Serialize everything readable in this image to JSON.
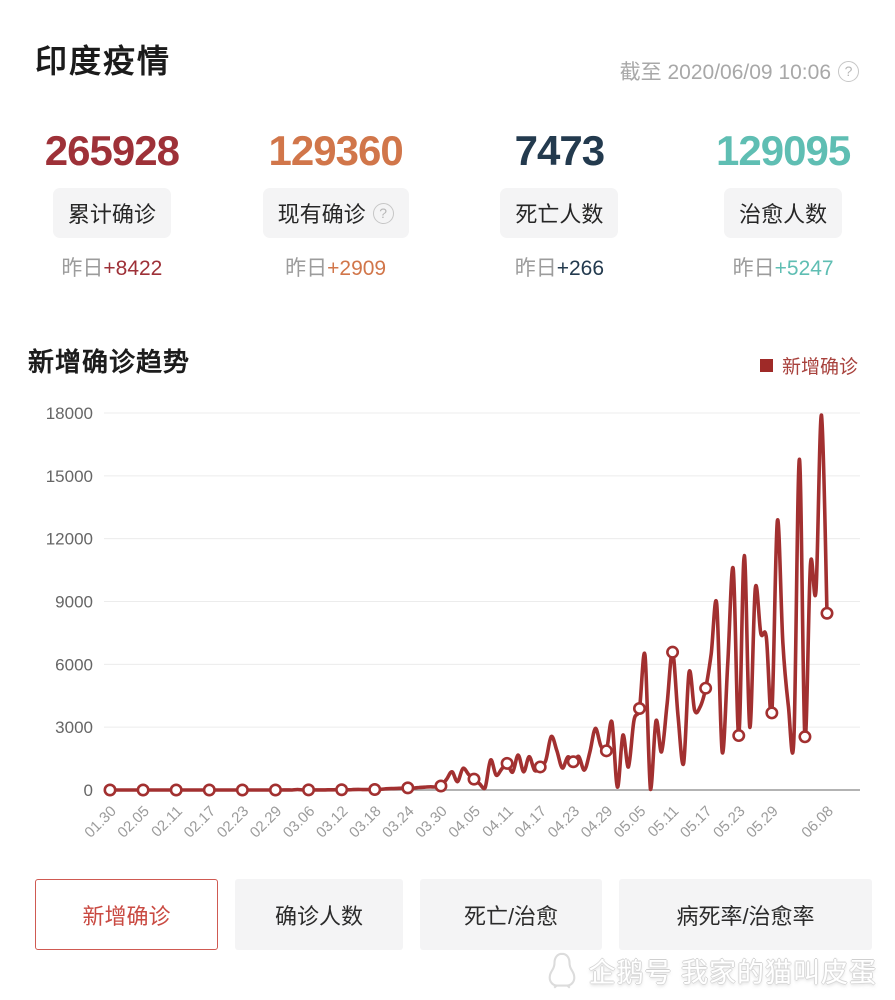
{
  "header": {
    "title": "印度疫情",
    "as_of": "截至 2020/06/09 10:06",
    "help_glyph": "?"
  },
  "stats": [
    {
      "value": "265928",
      "label": "累计确诊",
      "delta_prefix": "昨日",
      "delta": "+8422",
      "color": "#9e3138",
      "has_help": false
    },
    {
      "value": "129360",
      "label": "现有确诊",
      "delta_prefix": "昨日",
      "delta": "+2909",
      "color": "#d1764a",
      "has_help": true,
      "help_glyph": "?"
    },
    {
      "value": "7473",
      "label": "死亡人数",
      "delta_prefix": "昨日",
      "delta": "+266",
      "color": "#233a4e",
      "has_help": false
    },
    {
      "value": "129095",
      "label": "治愈人数",
      "delta_prefix": "昨日",
      "delta": "+5247",
      "color": "#5fbeb3",
      "has_help": false
    }
  ],
  "chart_data": {
    "type": "line",
    "title": "新增确诊趋势",
    "series_name": "新增确诊",
    "line_color": "#a23030",
    "legend_swatch_color": "#9f2a28",
    "legend_text_color": "#a8413c",
    "grid": true,
    "ylim": [
      0,
      18000
    ],
    "y_ticks": [
      0,
      3000,
      6000,
      9000,
      12000,
      15000,
      18000
    ],
    "x_tick_labels": [
      "01.30",
      "02.05",
      "02.11",
      "02.17",
      "02.23",
      "02.29",
      "03.06",
      "03.12",
      "03.18",
      "03.24",
      "03.30",
      "04.05",
      "04.11",
      "04.17",
      "04.23",
      "04.29",
      "05.05",
      "05.11",
      "05.17",
      "05.23",
      "05.29",
      "06.08"
    ],
    "x_tick_indices": [
      0,
      6,
      12,
      18,
      24,
      30,
      36,
      42,
      48,
      54,
      60,
      66,
      72,
      78,
      84,
      90,
      96,
      102,
      108,
      114,
      120,
      130
    ],
    "x_start_date": "01.30",
    "x_end_date": "06.08",
    "daily_values": [
      1,
      0,
      0,
      1,
      1,
      0,
      0,
      0,
      0,
      0,
      0,
      0,
      0,
      0,
      0,
      0,
      0,
      0,
      0,
      0,
      0,
      0,
      0,
      0,
      0,
      0,
      0,
      0,
      0,
      0,
      0,
      0,
      3,
      2,
      22,
      2,
      5,
      4,
      6,
      6,
      10,
      12,
      12,
      10,
      20,
      30,
      18,
      25,
      25,
      35,
      55,
      65,
      75,
      85,
      100,
      90,
      120,
      135,
      155,
      145,
      190,
      500,
      870,
      400,
      1030,
      750,
      520,
      300,
      95,
      1430,
      710,
      1000,
      1270,
      850,
      1670,
      870,
      1590,
      930,
      1100,
      1400,
      2550,
      1900,
      1050,
      1580,
      1350,
      1600,
      950,
      1800,
      2940,
      2100,
      1870,
      3250,
      140,
      2620,
      1100,
      3330,
      3890,
      6430,
      30,
      3300,
      1820,
      4100,
      6580,
      3500,
      1270,
      5630,
      3810,
      3970,
      4860,
      6500,
      8890,
      1820,
      6000,
      10560,
      2600,
      11190,
      3000,
      9620,
      7480,
      7300,
      3680,
      12860,
      7000,
      4000,
      2460,
      15790,
      2540,
      10790,
      9520,
      17900,
      8440
    ],
    "marker_values_at_ticks": {
      "01.30": 1,
      "02.05": 0,
      "02.11": 0,
      "02.17": 0,
      "02.23": 0,
      "02.29": 0,
      "03.06": 5,
      "03.12": 12,
      "03.18": 25,
      "03.24": 100,
      "03.30": 190,
      "04.05": 520,
      "04.11": 1270,
      "04.17": 1100,
      "04.23": 1350,
      "04.29": 1870,
      "05.05": 3890,
      "05.11": 6580,
      "05.17": 4860,
      "05.23": 2600,
      "05.29": 3680,
      "06.08": 8440
    }
  },
  "tabs": [
    {
      "label": "新增确诊",
      "active": true
    },
    {
      "label": "确诊人数",
      "active": false
    },
    {
      "label": "死亡/治愈",
      "active": false
    },
    {
      "label": "病死率/治愈率",
      "active": false
    }
  ],
  "watermark": {
    "text": "企鹅号 我家的猫叫皮蛋"
  }
}
